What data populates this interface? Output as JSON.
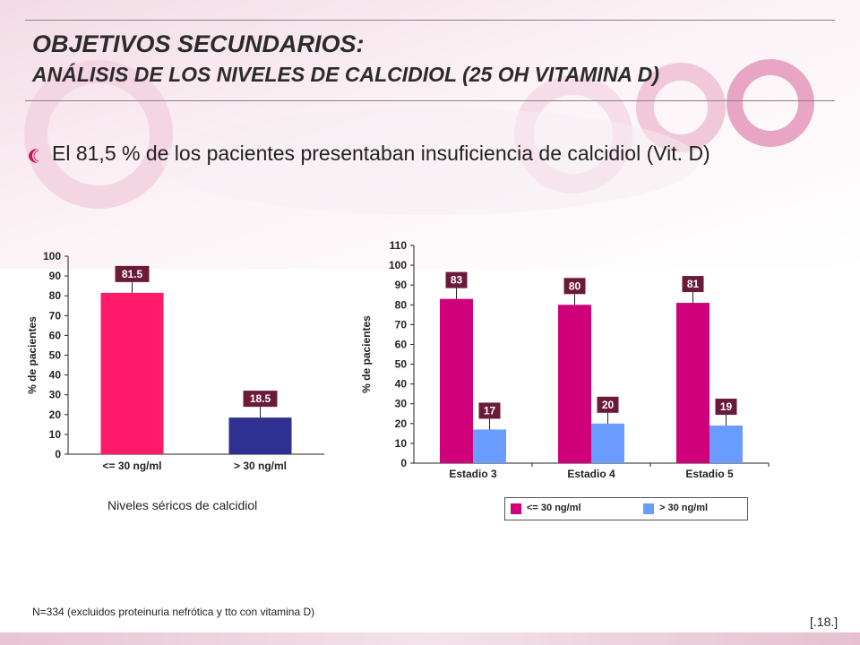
{
  "header": {
    "title_line1": "OBJETIVOS SECUNDARIOS:",
    "title_line2": "ANÁLISIS DE LOS NIVELES DE CALCIDIOL (25 OH VITAMINA D)"
  },
  "bullet": {
    "text": "El 81,5 % de los pacientes presentaban insuficiencia de calcidiol (Vit. D)",
    "icon": "pink-bullet-icon"
  },
  "footnote": "N=334 (excluidos proteinuria nefrótica y tto con vitamina D)",
  "page_number": "[.18.]",
  "chart_data": [
    {
      "type": "bar",
      "categories": [
        "<= 30 ng/ml",
        "> 30 ng/ml"
      ],
      "values": [
        81.5,
        18.5
      ],
      "value_labels": [
        "81.5",
        "18.5"
      ],
      "colors": [
        "#ff1a6a",
        "#2e3192"
      ],
      "ylabel": "% de pacientes",
      "xlabel": "Niveles séricos de calcidiol",
      "ylim": [
        0,
        100
      ],
      "yticks": [
        0,
        10,
        20,
        30,
        40,
        50,
        60,
        70,
        80,
        90,
        100
      ]
    },
    {
      "type": "bar",
      "categories": [
        "Estadio 3",
        "Estadio 4",
        "Estadio 5"
      ],
      "series": [
        {
          "name": "<= 30 ng/ml",
          "values": [
            83,
            80,
            81
          ],
          "color": "#d0007a"
        },
        {
          "name": "> 30 ng/ml",
          "values": [
            17,
            20,
            19
          ],
          "color": "#6a9bff"
        }
      ],
      "ylabel": "% de pacientes",
      "ylim": [
        0,
        110
      ],
      "yticks": [
        0,
        10,
        20,
        30,
        40,
        50,
        60,
        70,
        80,
        90,
        100,
        110
      ],
      "legend": "bottom"
    }
  ]
}
